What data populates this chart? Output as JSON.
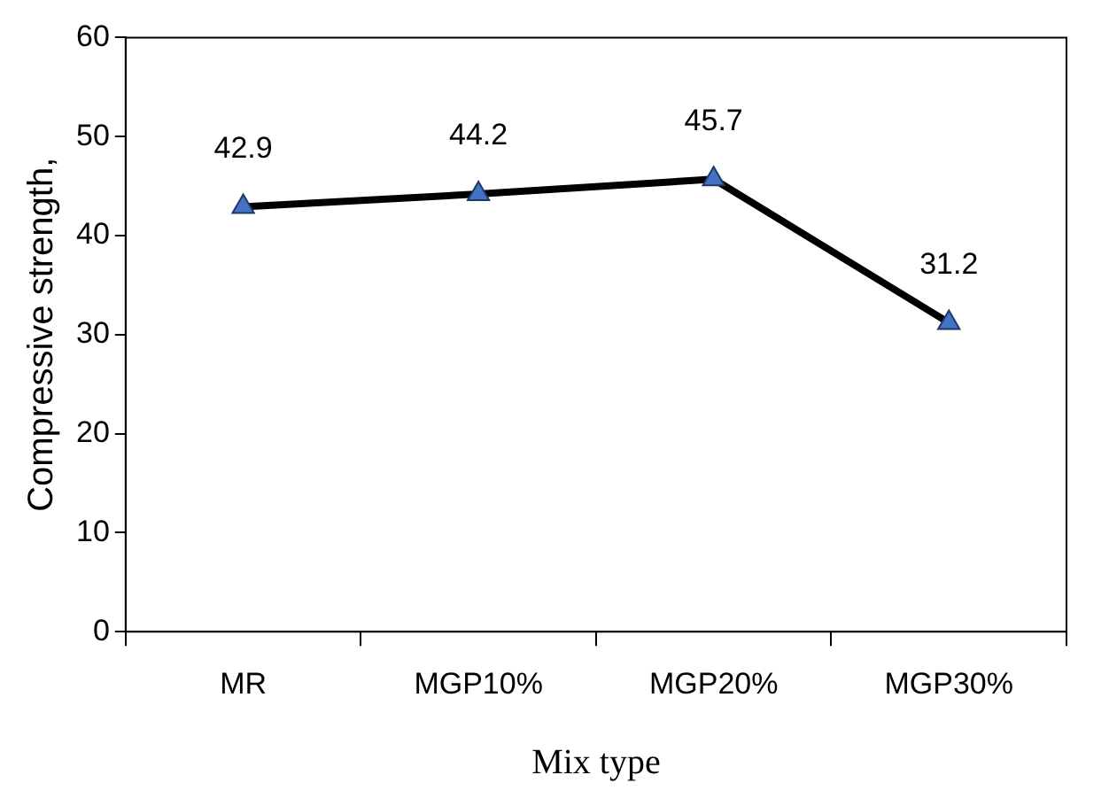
{
  "chart_data": {
    "type": "line",
    "xlabel": "Mix type",
    "ylabel": "Compressive strength,",
    "categories": [
      "MR",
      "MGP10%",
      "MGP20%",
      "MGP30%"
    ],
    "series": [
      {
        "color": "#000000",
        "colors": [
          "#4472c4",
          "#4472c4",
          "#4472c4",
          "#4472c4"
        ],
        "values": [
          42.9,
          44.2,
          45.7,
          31.2
        ]
      }
    ],
    "ylim": [
      0,
      60
    ],
    "yticks": [
      0,
      10,
      20,
      30,
      40,
      50,
      60
    ],
    "grid": false,
    "legend": false,
    "marker": "triangle",
    "line_style": "solid",
    "data_labels": true
  }
}
